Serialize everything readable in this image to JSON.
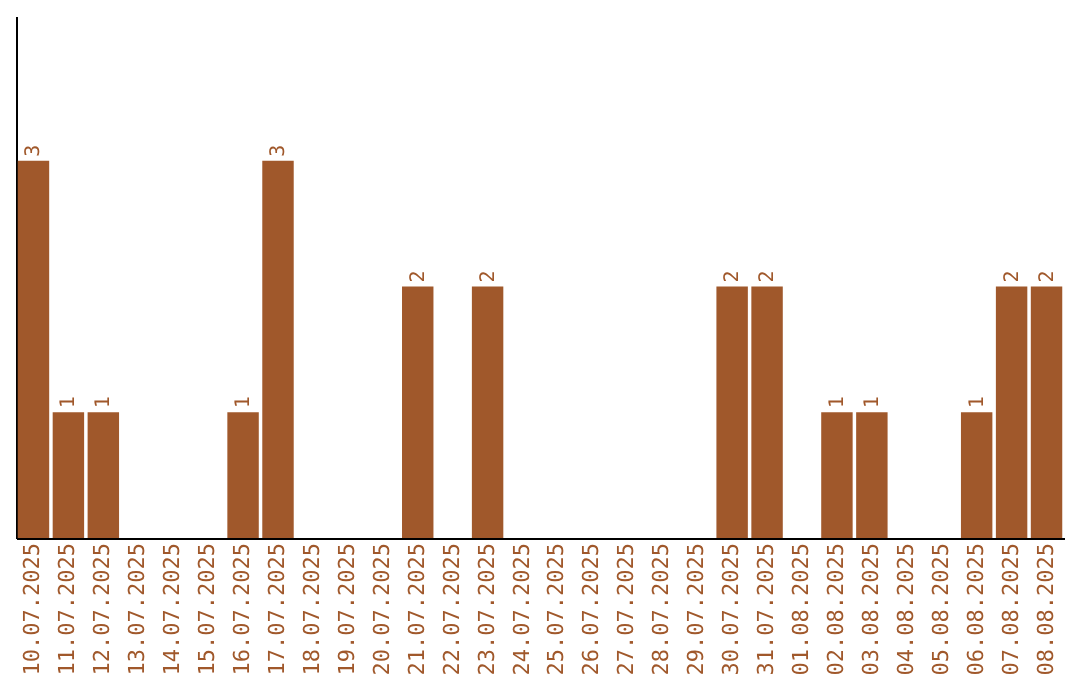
{
  "chart_data": {
    "type": "bar",
    "categories": [
      "10.07.2025",
      "11.07.2025",
      "12.07.2025",
      "13.07.2025",
      "14.07.2025",
      "15.07.2025",
      "16.07.2025",
      "17.07.2025",
      "18.07.2025",
      "19.07.2025",
      "20.07.2025",
      "21.07.2025",
      "22.07.2025",
      "23.07.2025",
      "24.07.2025",
      "25.07.2025",
      "26.07.2025",
      "27.07.2025",
      "28.07.2025",
      "29.07.2025",
      "30.07.2025",
      "31.07.2025",
      "01.08.2025",
      "02.08.2025",
      "03.08.2025",
      "04.08.2025",
      "05.08.2025",
      "06.08.2025",
      "07.08.2025",
      "08.08.2025"
    ],
    "values": [
      3,
      1,
      1,
      0,
      0,
      0,
      1,
      3,
      0,
      0,
      0,
      2,
      0,
      2,
      0,
      0,
      0,
      0,
      0,
      0,
      2,
      2,
      0,
      1,
      1,
      0,
      0,
      1,
      2,
      2
    ],
    "value_labels": [
      "3",
      "1",
      "1",
      null,
      null,
      null,
      "1",
      "3",
      null,
      null,
      null,
      "2",
      null,
      "2",
      null,
      null,
      null,
      null,
      null,
      null,
      "2",
      "2",
      null,
      "1",
      "1",
      null,
      null,
      "1",
      "2",
      "2"
    ],
    "color": "#a0582b",
    "ylim": [
      0,
      4.15
    ],
    "tick_labels": "x"
  }
}
